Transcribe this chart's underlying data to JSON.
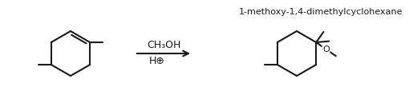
{
  "background_color": "#ffffff",
  "line_color": "#1a1a1a",
  "line_width": 1.5,
  "arrow_label_top": "CH₃OH",
  "arrow_label_bottom": "H⊕",
  "product_label": "1-methoxy-1,4-dimethylcyclohexane",
  "label_fontsize": 8.0,
  "formula_fontsize": 9.0
}
